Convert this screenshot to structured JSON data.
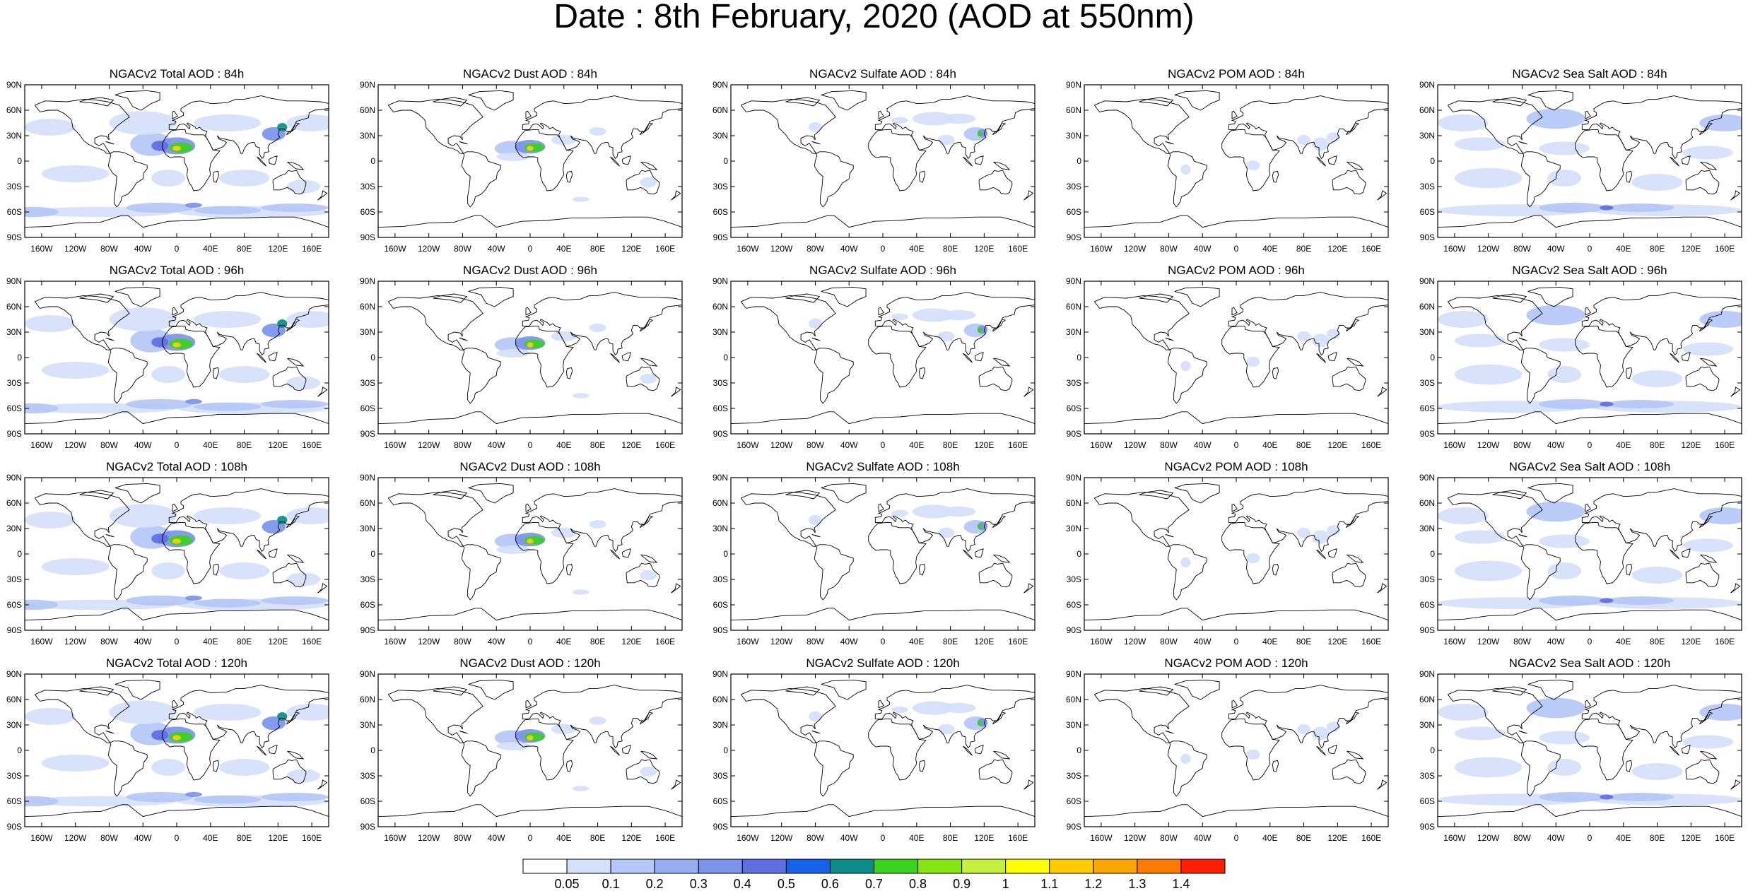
{
  "title": "Date : 8th February, 2020 (AOD at 550nm)",
  "lat_labels": [
    "90N",
    "60N",
    "30N",
    "0",
    "30S",
    "60S",
    "90S"
  ],
  "lon_labels": [
    "160W",
    "120W",
    "80W",
    "40W",
    "0",
    "40E",
    "80E",
    "120E",
    "160E"
  ],
  "panel_columns": [
    "Total",
    "Dust",
    "Sulfate",
    "POM",
    "Sea Salt"
  ],
  "panels": [
    [
      {
        "title": "NGACv2 Total AOD : 84h",
        "species": "total"
      },
      {
        "title": "NGACv2 Dust AOD : 84h",
        "species": "dust"
      },
      {
        "title": "NGACv2 Sulfate AOD : 84h",
        "species": "sulfate"
      },
      {
        "title": "NGACv2 POM AOD : 84h",
        "species": "pom"
      },
      {
        "title": "NGACv2 Sea Salt AOD : 84h",
        "species": "seasalt"
      }
    ],
    [
      {
        "title": "NGACv2 Total AOD : 96h",
        "species": "total"
      },
      {
        "title": "NGACv2 Dust AOD : 96h",
        "species": "dust"
      },
      {
        "title": "NGACv2 Sulfate AOD : 96h",
        "species": "sulfate"
      },
      {
        "title": "NGACv2 POM AOD : 96h",
        "species": "pom"
      },
      {
        "title": "NGACv2 Sea Salt AOD : 96h",
        "species": "seasalt"
      }
    ],
    [
      {
        "title": "NGACv2 Total AOD : 108h",
        "species": "total"
      },
      {
        "title": "NGACv2 Dust AOD : 108h",
        "species": "dust"
      },
      {
        "title": "NGACv2 Sulfate AOD : 108h",
        "species": "sulfate"
      },
      {
        "title": "NGACv2 POM AOD : 108h",
        "species": "pom"
      },
      {
        "title": "NGACv2 Sea Salt AOD : 108h",
        "species": "seasalt"
      }
    ],
    [
      {
        "title": "NGACv2 Total AOD : 120h",
        "species": "total"
      },
      {
        "title": "NGACv2 Dust AOD : 120h",
        "species": "dust"
      },
      {
        "title": "NGACv2 Sulfate AOD : 120h",
        "species": "sulfate"
      },
      {
        "title": "NGACv2 POM AOD : 120h",
        "species": "pom"
      },
      {
        "title": "NGACv2 Sea Salt  AOD : 120h",
        "species": "seasalt"
      }
    ]
  ],
  "colorbar": {
    "labels": [
      "0.05",
      "0.1",
      "0.2",
      "0.3",
      "0.4",
      "0.5",
      "0.6",
      "0.7",
      "0.8",
      "0.9",
      "1",
      "1.1",
      "1.2",
      "1.3",
      "1.4"
    ],
    "colors": [
      "#ffffff",
      "#d5e1fb",
      "#b4c7f6",
      "#96aff0",
      "#7b93ec",
      "#5f6fe3",
      "#1561e8",
      "#0a8c8a",
      "#39d21c",
      "#86e612",
      "#c4f03c",
      "#ffff00",
      "#ffcc00",
      "#ffa500",
      "#ff7a00",
      "#ff1e00"
    ]
  },
  "shading_colors": {
    "light": "#d5e1fb",
    "mid": "#b4c7f6",
    "strong": "#7b93ec",
    "deep": "#5f6fe3",
    "dust_core": "#39d21c",
    "dust_peak": "#ffcc00",
    "teal": "#0a8c8a"
  }
}
